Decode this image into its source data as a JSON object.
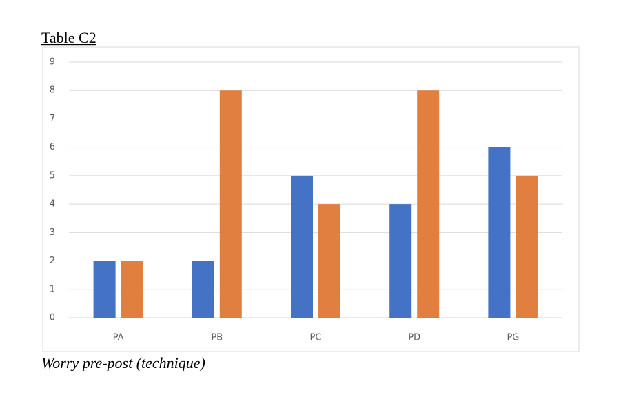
{
  "chart_data": {
    "type": "bar",
    "title": "Table C2",
    "caption": "Worry pre-post (technique)",
    "categories": [
      "PA",
      "PB",
      "PC",
      "PD",
      "PG"
    ],
    "series": [
      {
        "color": "#4472c4",
        "values": [
          2,
          2,
          5,
          4,
          6
        ]
      },
      {
        "color": "#e07f3f",
        "values": [
          2,
          8,
          4,
          8,
          5
        ]
      }
    ],
    "ylim": [
      0,
      9
    ],
    "yticks": [
      0,
      1,
      2,
      3,
      4,
      5,
      6,
      7,
      8,
      9
    ],
    "grid": true
  }
}
